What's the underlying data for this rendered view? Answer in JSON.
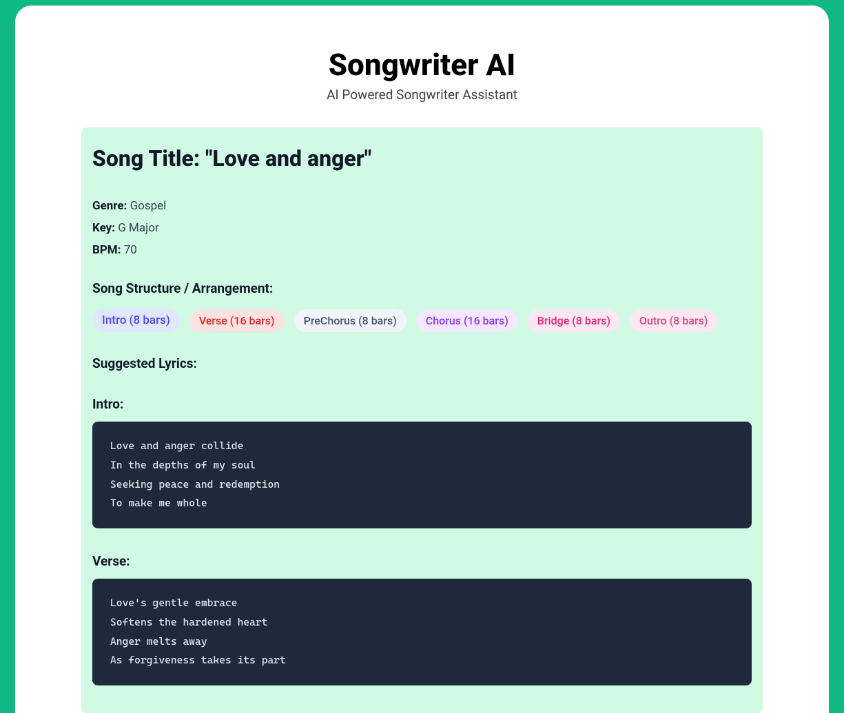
{
  "header": {
    "title": "Songwriter AI",
    "subtitle": "AI Powered Songwriter Assistant"
  },
  "song": {
    "title_prefix": "Song Title: ",
    "title": "\"Love and anger\"",
    "genre_label": "Genre: ",
    "genre": "Gospel",
    "key_label": "Key: ",
    "key": "G Major",
    "bpm_label": "BPM: ",
    "bpm": "70"
  },
  "structure": {
    "heading": "Song Structure / Arrangement:",
    "items": [
      {
        "label": "Intro (8 bars)",
        "class": "pill-intro"
      },
      {
        "label": "Verse (16 bars)",
        "class": "pill-verse"
      },
      {
        "label": "PreChorus (8 bars)",
        "class": "pill-prechorus"
      },
      {
        "label": "Chorus (16 bars)",
        "class": "pill-chorus"
      },
      {
        "label": "Bridge (8 bars)",
        "class": "pill-bridge"
      },
      {
        "label": "Outro (8 bars)",
        "class": "pill-outro"
      }
    ]
  },
  "lyrics": {
    "heading": "Suggested Lyrics:",
    "sections": [
      {
        "title": "Intro:",
        "text": "Love and anger collide\nIn the depths of my soul\nSeeking peace and redemption\nTo make me whole"
      },
      {
        "title": "Verse:",
        "text": "Love's gentle embrace\nSoftens the hardened heart\nAnger melts away\nAs forgiveness takes its part"
      }
    ]
  },
  "colors": {
    "page_bg": "#10b981",
    "card_bg": "#d1fae5",
    "lyrics_bg": "#1e293b",
    "lyrics_fg": "#e2e8f0"
  }
}
